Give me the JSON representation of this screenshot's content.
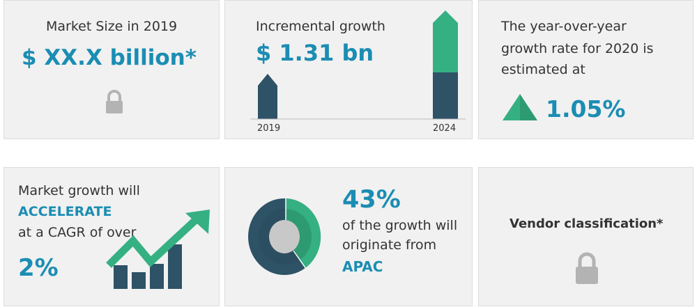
{
  "market_size": {
    "label": "Market Size in 2019",
    "value": "$ XX.X billion*",
    "icon": "lock-icon"
  },
  "incremental": {
    "label": "Incremental growth",
    "value": "$ 1.31 bn",
    "year_start": "2019",
    "year_end": "2024"
  },
  "yoy": {
    "text": [
      "The year-over-year",
      "growth rate for 2020 is",
      "estimated at"
    ],
    "value": "1.05%",
    "icon": "triangle-up-icon"
  },
  "cagr": {
    "line1": "Market growth will",
    "highlight": "ACCELERATE",
    "line2": "at a CAGR of over",
    "value": "2%",
    "icon": "growth-chart-arrow-icon"
  },
  "region": {
    "value": "43%",
    "line1": "of the growth will",
    "line2": "originate from",
    "region": "APAC",
    "share": 0.43
  },
  "vendor": {
    "label": "Vendor classification*",
    "icon": "lock-icon"
  },
  "colors": {
    "accent": "#1b8db3",
    "green": "#35b083",
    "dark": "#2e5266",
    "lock": "#b3b3b3"
  }
}
